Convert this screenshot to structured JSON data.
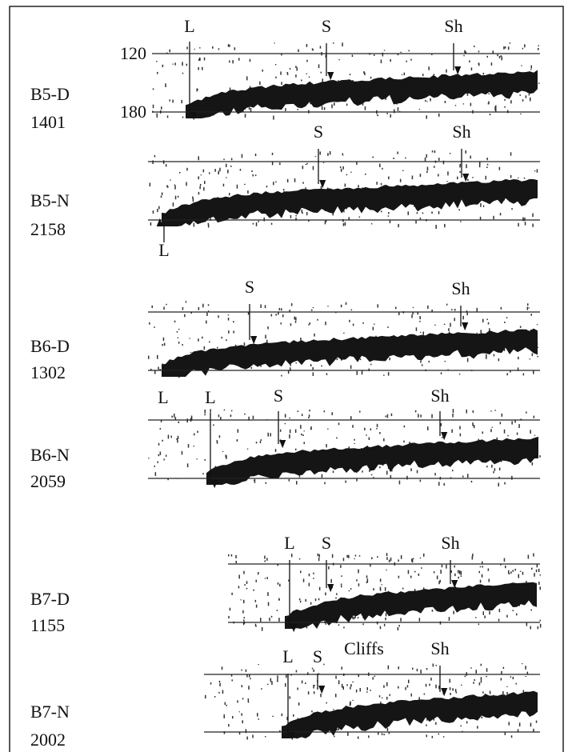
{
  "panels": [
    {
      "label": [
        "B5-D",
        "1401"
      ],
      "axis_labels": [
        "120",
        "180"
      ],
      "markers": [
        "L",
        "S",
        "Sh"
      ]
    },
    {
      "label": [
        "B5-N",
        "2158"
      ],
      "markers": [
        "S",
        "Sh",
        "L"
      ]
    },
    {
      "label": [
        "B6-D",
        "1302"
      ],
      "markers": [
        "S",
        "Sh",
        "L"
      ]
    },
    {
      "label": [
        "B6-N",
        "2059"
      ],
      "markers": [
        "L",
        "S",
        "Sh"
      ]
    },
    {
      "label": [
        "B7-D",
        "1155"
      ],
      "markers": [
        "L",
        "S",
        "Sh"
      ]
    },
    {
      "label": [
        "B7-N",
        "2002"
      ],
      "markers": [
        "L",
        "S",
        "Cliffs",
        "Sh"
      ]
    }
  ]
}
